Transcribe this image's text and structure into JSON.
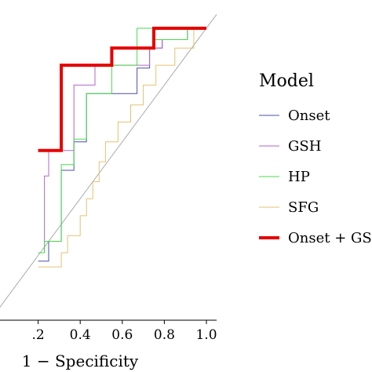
{
  "chart_data": {
    "type": "line",
    "xlabel": "1 − Specificity",
    "x_ticks": [
      0.2,
      0.4,
      0.6,
      0.8,
      1.0
    ],
    "x_tick_labels": [
      ".2",
      "0.4",
      "0.6",
      "0.8",
      "1.0"
    ],
    "xlim": [
      0.2,
      1.0
    ],
    "ylim": [
      0.0,
      1.0
    ],
    "reference_line": {
      "from": [
        0.0,
        0.0
      ],
      "to": [
        1.0,
        1.0
      ],
      "color": "#aaaaaa"
    },
    "legend": {
      "title": "Model",
      "position": "right"
    },
    "series": [
      {
        "name": "Onset",
        "color": "#4b4fa8",
        "width": 1,
        "points": [
          [
            0.2,
            0.18
          ],
          [
            0.25,
            0.18
          ],
          [
            0.25,
            0.25
          ],
          [
            0.31,
            0.25
          ],
          [
            0.31,
            0.5
          ],
          [
            0.37,
            0.5
          ],
          [
            0.37,
            0.6
          ],
          [
            0.43,
            0.6
          ],
          [
            0.43,
            0.77
          ],
          [
            0.67,
            0.77
          ],
          [
            0.67,
            0.86
          ],
          [
            0.73,
            0.86
          ],
          [
            0.73,
            0.93
          ],
          [
            0.79,
            0.93
          ],
          [
            0.79,
            0.96
          ],
          [
            0.91,
            0.96
          ],
          [
            0.91,
            1.0
          ],
          [
            1.0,
            1.0
          ]
        ]
      },
      {
        "name": "GSH",
        "color": "#b366cc",
        "width": 1,
        "points": [
          [
            0.2,
            0.21
          ],
          [
            0.23,
            0.21
          ],
          [
            0.23,
            0.48
          ],
          [
            0.25,
            0.48
          ],
          [
            0.25,
            0.57
          ],
          [
            0.37,
            0.57
          ],
          [
            0.37,
            0.8
          ],
          [
            0.47,
            0.8
          ],
          [
            0.47,
            0.87
          ],
          [
            0.73,
            0.87
          ],
          [
            0.73,
            0.93
          ],
          [
            0.79,
            0.93
          ],
          [
            0.79,
            0.96
          ],
          [
            0.91,
            0.96
          ],
          [
            0.91,
            1.0
          ],
          [
            1.0,
            1.0
          ]
        ]
      },
      {
        "name": "HP",
        "color": "#4cd94c",
        "width": 1,
        "points": [
          [
            0.2,
            0.21
          ],
          [
            0.23,
            0.21
          ],
          [
            0.23,
            0.25
          ],
          [
            0.31,
            0.25
          ],
          [
            0.31,
            0.52
          ],
          [
            0.37,
            0.52
          ],
          [
            0.37,
            0.61
          ],
          [
            0.43,
            0.61
          ],
          [
            0.43,
            0.77
          ],
          [
            0.55,
            0.77
          ],
          [
            0.55,
            0.87
          ],
          [
            0.67,
            0.87
          ],
          [
            0.67,
            1.0
          ],
          [
            0.75,
            1.0
          ],
          [
            0.75,
            0.96
          ],
          [
            0.91,
            0.96
          ],
          [
            0.91,
            1.0
          ],
          [
            1.0,
            1.0
          ]
        ]
      },
      {
        "name": "SFG",
        "color": "#e6c273",
        "width": 1,
        "points": [
          [
            0.2,
            0.16
          ],
          [
            0.31,
            0.16
          ],
          [
            0.31,
            0.21
          ],
          [
            0.34,
            0.21
          ],
          [
            0.34,
            0.27
          ],
          [
            0.4,
            0.27
          ],
          [
            0.4,
            0.34
          ],
          [
            0.43,
            0.34
          ],
          [
            0.43,
            0.4
          ],
          [
            0.46,
            0.4
          ],
          [
            0.46,
            0.46
          ],
          [
            0.49,
            0.46
          ],
          [
            0.49,
            0.53
          ],
          [
            0.52,
            0.53
          ],
          [
            0.52,
            0.6
          ],
          [
            0.58,
            0.6
          ],
          [
            0.58,
            0.67
          ],
          [
            0.64,
            0.67
          ],
          [
            0.64,
            0.73
          ],
          [
            0.7,
            0.73
          ],
          [
            0.7,
            0.8
          ],
          [
            0.76,
            0.8
          ],
          [
            0.76,
            0.87
          ],
          [
            0.85,
            0.87
          ],
          [
            0.85,
            0.93
          ],
          [
            0.94,
            0.93
          ],
          [
            0.94,
            1.0
          ],
          [
            1.0,
            1.0
          ]
        ]
      },
      {
        "name": "Onset + GS",
        "color": "#e60000",
        "width": 4,
        "points": [
          [
            0.2,
            0.57
          ],
          [
            0.31,
            0.57
          ],
          [
            0.31,
            0.87
          ],
          [
            0.55,
            0.87
          ],
          [
            0.55,
            0.93
          ],
          [
            0.75,
            0.93
          ],
          [
            0.75,
            1.0
          ],
          [
            1.0,
            1.0
          ]
        ]
      }
    ]
  }
}
